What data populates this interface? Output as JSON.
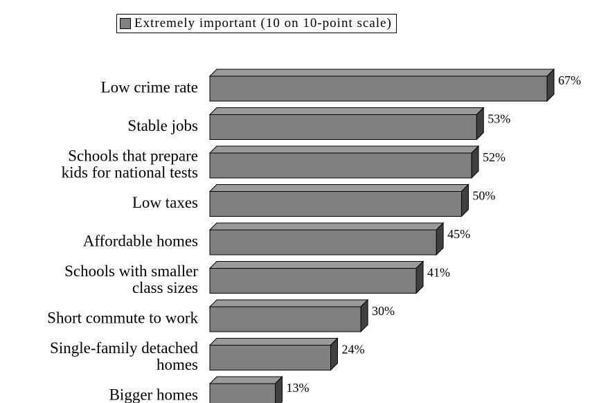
{
  "legend": {
    "label": "Extremely important (10 on 10-point scale)",
    "swatch_color": "#808080"
  },
  "chart_data": {
    "type": "bar",
    "orientation": "horizontal",
    "categories": [
      "Low crime rate",
      "Stable jobs",
      "Schools that prepare kids for national tests",
      "Low taxes",
      "Affordable homes",
      "Schools with smaller class sizes",
      "Short commute to work",
      "Single-family detached homes",
      "Bigger homes"
    ],
    "category_lines": [
      [
        "Low crime rate"
      ],
      [
        "Stable jobs"
      ],
      [
        "Schools that prepare",
        "kids for national tests"
      ],
      [
        "Low taxes"
      ],
      [
        "Affordable homes"
      ],
      [
        "Schools with smaller",
        "class sizes"
      ],
      [
        "Short commute to work"
      ],
      [
        "Single-family detached",
        "homes"
      ],
      [
        "Bigger homes"
      ]
    ],
    "series": [
      {
        "name": "Extremely important (10 on 10-point scale)",
        "values": [
          67,
          53,
          52,
          50,
          45,
          41,
          30,
          24,
          13
        ]
      }
    ],
    "value_labels": [
      "67%",
      "53%",
      "52%",
      "50%",
      "45%",
      "41%",
      "30%",
      "24%",
      "13%"
    ],
    "xlim": [
      0,
      67
    ],
    "unit": "%",
    "grid": false,
    "legend_position": "top",
    "colors": {
      "bar_face": "#808080",
      "bar_top": "#9a9a9a",
      "bar_side": "#404040"
    }
  }
}
